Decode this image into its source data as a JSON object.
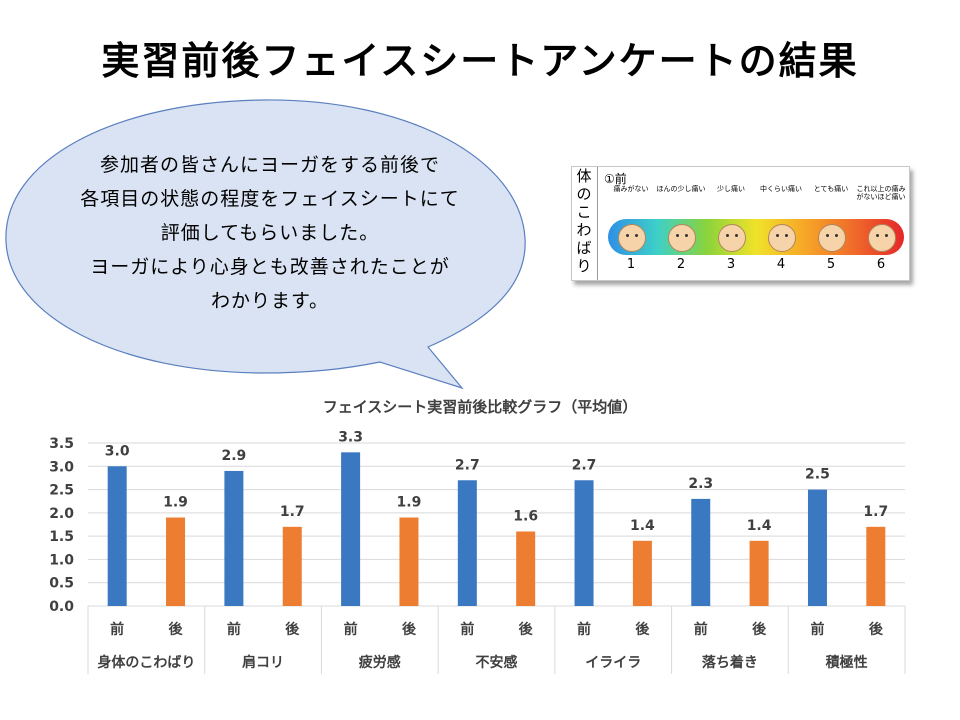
{
  "title": "実習前後フェイスシートアンケートの結果",
  "bubble": {
    "lines": [
      "参加者の皆さんにヨーガをする前後で",
      "各項目の状態の程度をフェイスシートにて",
      "評価してもらいました。",
      "ヨーガにより心身とも改善されたことが",
      "わかります。"
    ]
  },
  "face_scale": {
    "side_label": [
      "体",
      "の",
      "こ",
      "わ",
      "ば",
      "り"
    ],
    "step_label": "①前",
    "levels": [
      {
        "desc": "痛みがない",
        "num": "1"
      },
      {
        "desc": "ほんの少し痛い",
        "num": "2"
      },
      {
        "desc": "少し痛い",
        "num": "3"
      },
      {
        "desc": "中くらい痛い",
        "num": "4"
      },
      {
        "desc": "とても痛い",
        "num": "5"
      },
      {
        "desc": "これ以上の痛みがないほど痛い",
        "num": "6"
      }
    ]
  },
  "chart_data": {
    "type": "bar",
    "title": "フェイスシート実習前後比較グラフ（平均値）",
    "ylim": [
      0,
      3.5
    ],
    "yticks": [
      "0.0",
      "0.5",
      "1.0",
      "1.5",
      "2.0",
      "2.5",
      "3.0",
      "3.5"
    ],
    "grid": true,
    "categories": [
      "身体のこわばり",
      "肩コリ",
      "疲労感",
      "不安感",
      "イライラ",
      "落ち着き",
      "積極性"
    ],
    "sub_categories": [
      "前",
      "後"
    ],
    "series": [
      {
        "name": "前",
        "color": "#3a78c2",
        "values": [
          3.0,
          2.9,
          3.3,
          2.7,
          2.7,
          2.3,
          2.5
        ],
        "labels": [
          "3.0",
          "2.9",
          "3.3",
          "2.7",
          "2.7",
          "2.3",
          "2.5"
        ]
      },
      {
        "name": "後",
        "color": "#ed7d31",
        "values": [
          1.9,
          1.7,
          1.9,
          1.6,
          1.4,
          1.4,
          1.7
        ],
        "labels": [
          "1.9",
          "1.7",
          "1.9",
          "1.6",
          "1.4",
          "1.4",
          "1.7"
        ]
      }
    ]
  }
}
